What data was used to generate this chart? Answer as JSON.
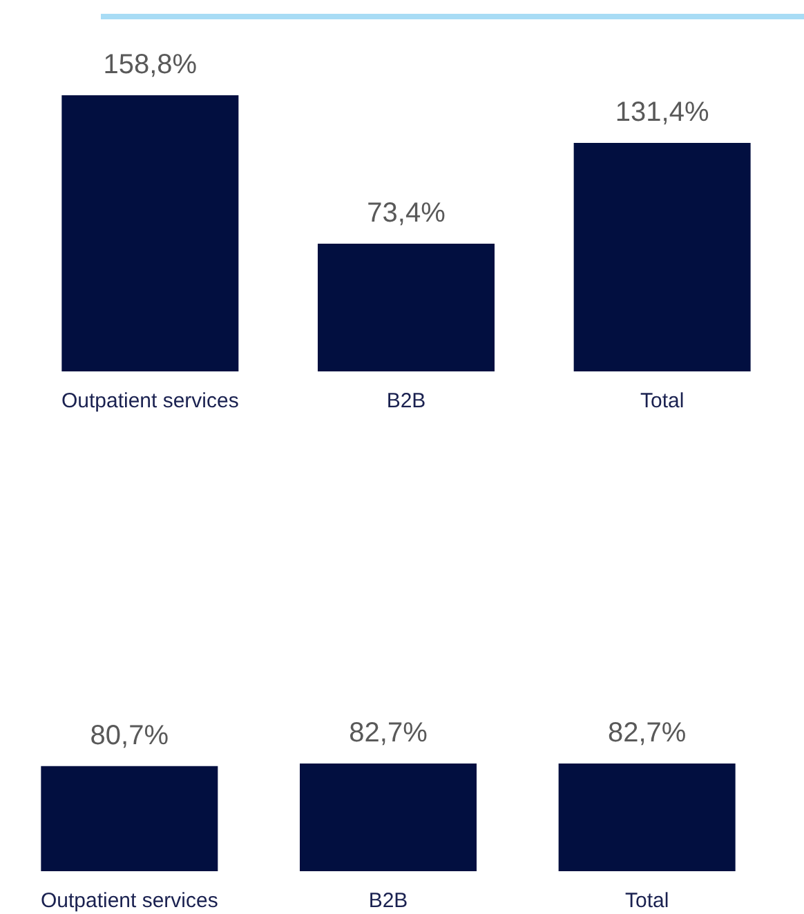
{
  "chart_data": [
    {
      "type": "bar",
      "categories": [
        "Outpatient services",
        "B2B",
        "Total"
      ],
      "values": [
        158.8,
        73.4,
        131.4
      ],
      "value_labels": [
        "158,8%",
        "73,4%",
        "131,4%"
      ],
      "color": "#020f40"
    },
    {
      "type": "bar",
      "categories": [
        "Outpatient services",
        "B2B",
        "Total"
      ],
      "values": [
        80.7,
        82.7,
        82.7
      ],
      "value_labels": [
        "80,7%",
        "82,7%",
        "82,7%"
      ],
      "color": "#020f40"
    }
  ]
}
